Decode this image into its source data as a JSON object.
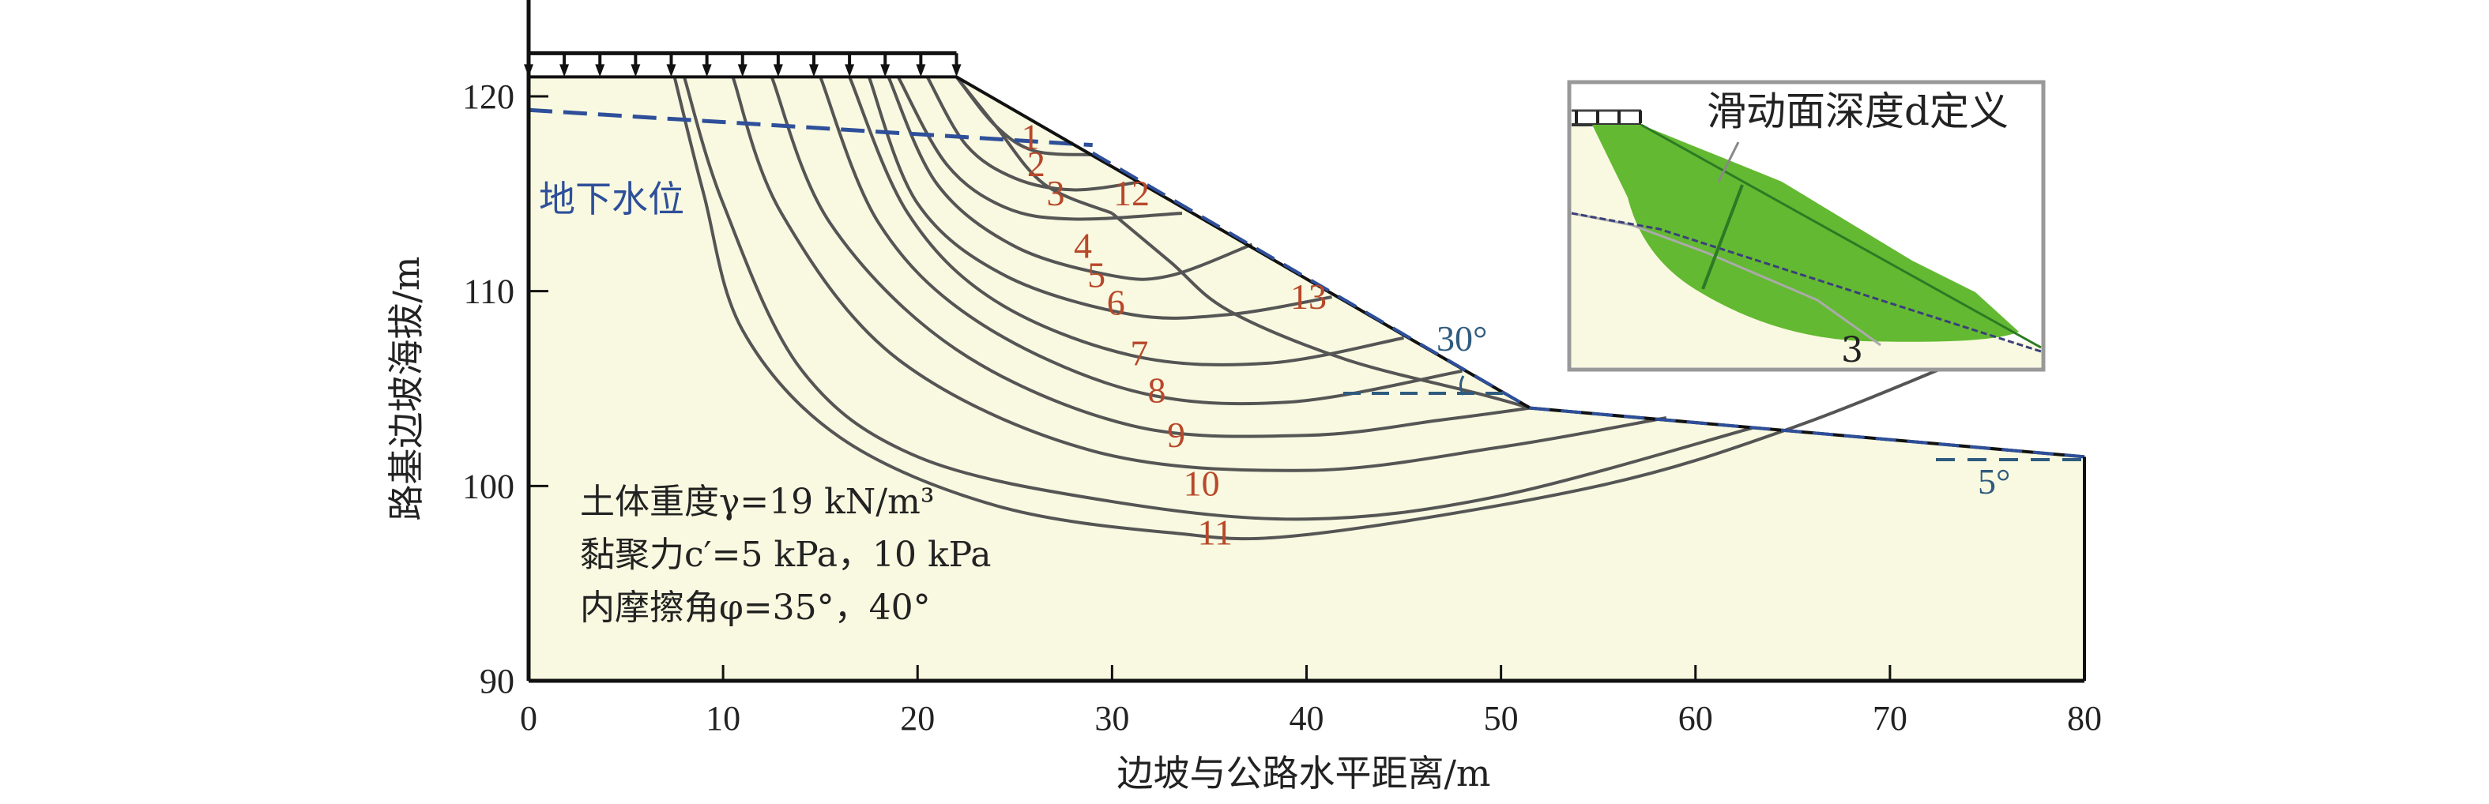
{
  "chart_data": {
    "type": "diagram",
    "title": "",
    "xlabel": "边坡与公路水平距离/m",
    "ylabel": "路基边坡海拔/m",
    "xlim": [
      0,
      80
    ],
    "ylim": [
      90,
      120
    ],
    "xticks": [
      "0",
      "10",
      "20",
      "30",
      "40",
      "50",
      "60",
      "70",
      "80"
    ],
    "yticks": [
      "90",
      "100",
      "110",
      "120"
    ],
    "ground_profile": [
      [
        0,
        121
      ],
      [
        22,
        121
      ],
      [
        51.5,
        104
      ],
      [
        80,
        101.5
      ]
    ],
    "surcharge_load": {
      "from": 0,
      "to": 22,
      "arrows": 13
    },
    "water_table": {
      "label": "地下水位",
      "points": [
        [
          0,
          119.3
        ],
        [
          29,
          117.5
        ]
      ]
    },
    "slope_angle_label": "30°",
    "toe_angle_label": "5°",
    "slip_surfaces": [
      {
        "id": "1",
        "points": [
          [
            22,
            121
          ],
          [
            24,
            118.5
          ],
          [
            26,
            117.2
          ],
          [
            29,
            117
          ]
        ]
      },
      {
        "id": "2",
        "points": [
          [
            20.5,
            121
          ],
          [
            22.5,
            117.5
          ],
          [
            25,
            115.8
          ],
          [
            28,
            115.2
          ],
          [
            31.4,
            115.6
          ]
        ]
      },
      {
        "id": "3",
        "points": [
          [
            19,
            121
          ],
          [
            21.5,
            116.5
          ],
          [
            24.5,
            114.3
          ],
          [
            28,
            113.7
          ],
          [
            33.6,
            114
          ]
        ]
      },
      {
        "id": "4",
        "points": [
          [
            18.5,
            121
          ],
          [
            21,
            115.5
          ],
          [
            25,
            112.3
          ],
          [
            30,
            110.8
          ],
          [
            33,
            110.8
          ],
          [
            37.2,
            112.4
          ]
        ]
      },
      {
        "id": "5",
        "points": [
          [
            17.5,
            121
          ],
          [
            20,
            114.5
          ],
          [
            24.5,
            110.8
          ],
          [
            31,
            108.8
          ],
          [
            36,
            108.8
          ],
          [
            41.3,
            109.7
          ]
        ]
      },
      {
        "id": "6",
        "points": [
          [
            16.5,
            121
          ],
          [
            19.5,
            114
          ],
          [
            24,
            109.5
          ],
          [
            31,
            106.7
          ],
          [
            38,
            106.3
          ],
          [
            45,
            107.6
          ]
        ]
      },
      {
        "id": "7",
        "points": [
          [
            15,
            121
          ],
          [
            18,
            113.5
          ],
          [
            23,
            108.5
          ],
          [
            31,
            104.9
          ],
          [
            39,
            104.3
          ],
          [
            48,
            105.9
          ]
        ]
      },
      {
        "id": "8",
        "points": [
          [
            12.5,
            121
          ],
          [
            15.5,
            113.5
          ],
          [
            22,
            107
          ],
          [
            31,
            103.1
          ],
          [
            40,
            102.6
          ],
          [
            47,
            103.4
          ],
          [
            51.5,
            104
          ]
        ]
      },
      {
        "id": "9",
        "points": [
          [
            10.5,
            121
          ],
          [
            13,
            114
          ],
          [
            19,
            106.5
          ],
          [
            29,
            101.8
          ],
          [
            40,
            100.8
          ],
          [
            50,
            102
          ],
          [
            58.5,
            103.5
          ]
        ]
      },
      {
        "id": "10",
        "points": [
          [
            8,
            121
          ],
          [
            10,
            114.5
          ],
          [
            14,
            106
          ],
          [
            20,
            101.5
          ],
          [
            30,
            99.2
          ],
          [
            40,
            98.3
          ],
          [
            50,
            99.5
          ],
          [
            63,
            103
          ]
        ]
      },
      {
        "id": "11",
        "points": [
          [
            7.5,
            121
          ],
          [
            9,
            115
          ],
          [
            11,
            108
          ],
          [
            16,
            102.5
          ],
          [
            24,
            99
          ],
          [
            33,
            97.6
          ],
          [
            40,
            97.5
          ],
          [
            55,
            100
          ],
          [
            65,
            103
          ],
          [
            75,
            107
          ]
        ]
      },
      {
        "id": "12",
        "points": [
          [
            22,
            121
          ],
          [
            24,
            118.5
          ],
          [
            26.5,
            115.5
          ],
          [
            30,
            114
          ]
        ]
      },
      {
        "id": "13",
        "points": [
          [
            30,
            114
          ],
          [
            33,
            111.5
          ],
          [
            36,
            109
          ],
          [
            42,
            106.5
          ],
          [
            49,
            104.7
          ],
          [
            51.5,
            104
          ]
        ]
      }
    ],
    "curve_labels": [
      {
        "text": "1",
        "at": [
          25.8,
          117.3
        ]
      },
      {
        "text": "2",
        "at": [
          26.1,
          115.9
        ]
      },
      {
        "text": "3",
        "at": [
          27.1,
          114.4
        ]
      },
      {
        "text": "4",
        "at": [
          28.5,
          111.7
        ]
      },
      {
        "text": "5",
        "at": [
          29.2,
          110.2
        ]
      },
      {
        "text": "6",
        "at": [
          30.2,
          108.8
        ]
      },
      {
        "text": "7",
        "at": [
          31.4,
          106.2
        ]
      },
      {
        "text": "8",
        "at": [
          32.3,
          104.3
        ]
      },
      {
        "text": "9",
        "at": [
          33.3,
          102.0
        ]
      },
      {
        "text": "10",
        "at": [
          34.6,
          99.5
        ]
      },
      {
        "text": "11",
        "at": [
          35.3,
          97.0
        ]
      },
      {
        "text": "12",
        "at": [
          31.0,
          114.4
        ]
      },
      {
        "text": "13",
        "at": [
          40.1,
          109.1
        ]
      }
    ],
    "annotations": [
      "土体重度γ=19 kN/m³",
      "黏聚力c′=5 kPa，10 kPa",
      "内摩擦角φ=35°，40°"
    ],
    "inset": {
      "title": "滑动面深度d定义",
      "curve_label": "3"
    }
  },
  "colors": {
    "soil_fill": "#f8f9e0",
    "curve": "#555555",
    "label_red": "#b8482a",
    "water_blue": "#2e4f9a",
    "angle_blue": "#2f5b7e",
    "slide_green": "#63b931"
  }
}
